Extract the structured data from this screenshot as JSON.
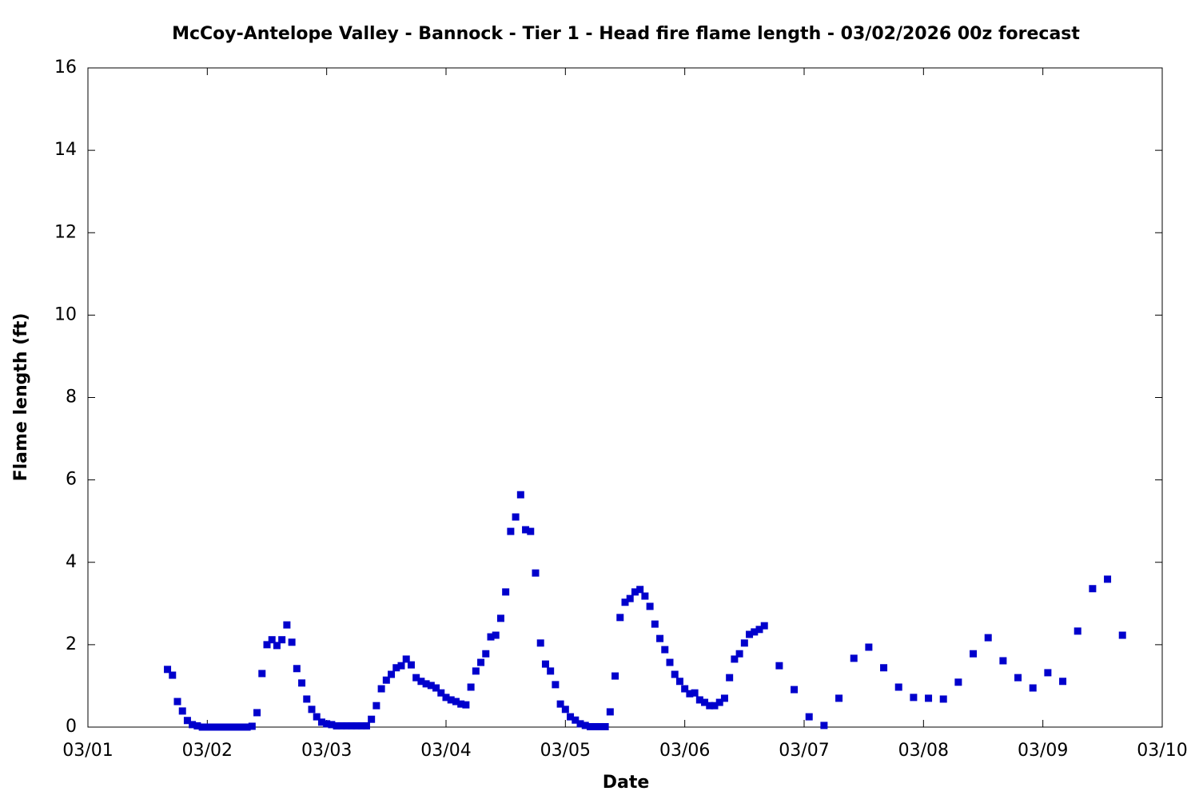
{
  "chart_data": {
    "type": "scatter",
    "title": "McCoy-Antelope Valley - Bannock - Tier 1 - Head fire flame length - 03/02/2026 00z forecast",
    "x_label": "Date",
    "y_label": "Flame length (ft)",
    "xlim": [
      0,
      216
    ],
    "ylim": [
      0,
      16
    ],
    "xticks": [
      {
        "value": 0,
        "label": "03/01"
      },
      {
        "value": 24,
        "label": "03/02"
      },
      {
        "value": 48,
        "label": "03/03"
      },
      {
        "value": 72,
        "label": "03/04"
      },
      {
        "value": 96,
        "label": "03/05"
      },
      {
        "value": 120,
        "label": "03/06"
      },
      {
        "value": 144,
        "label": "03/07"
      },
      {
        "value": 168,
        "label": "03/08"
      },
      {
        "value": 192,
        "label": "03/09"
      },
      {
        "value": 216,
        "label": "03/10"
      }
    ],
    "yticks": [
      0,
      2,
      4,
      6,
      8,
      10,
      12,
      14,
      16
    ],
    "grid": false,
    "color": "#0000cc",
    "x": [
      16,
      17,
      18,
      19,
      20,
      21,
      22,
      23,
      24,
      25,
      26,
      27,
      28,
      29,
      30,
      31,
      32,
      33,
      34,
      35,
      36,
      37,
      38,
      39,
      40,
      41,
      42,
      43,
      44,
      45,
      46,
      47,
      48,
      49,
      50,
      51,
      52,
      53,
      54,
      55,
      56,
      57,
      58,
      59,
      60,
      61,
      62,
      63,
      64,
      65,
      66,
      67,
      68,
      69,
      70,
      71,
      72,
      73,
      74,
      75,
      76,
      77,
      78,
      79,
      80,
      81,
      82,
      83,
      84,
      85,
      86,
      87,
      88,
      89,
      90,
      91,
      92,
      93,
      94,
      95,
      96,
      97,
      98,
      99,
      100,
      101,
      102,
      103,
      104,
      105,
      106,
      107,
      108,
      109,
      110,
      111,
      112,
      113,
      114,
      115,
      116,
      117,
      118,
      119,
      120,
      121,
      122,
      123,
      124,
      125,
      126,
      127,
      128,
      129,
      130,
      131,
      132,
      133,
      134,
      135,
      136,
      139,
      142,
      145,
      148,
      151,
      154,
      157,
      160,
      163,
      166,
      169,
      172,
      175,
      178,
      181,
      184,
      187,
      190,
      193,
      196,
      199,
      202,
      205,
      208
    ],
    "values": [
      1.4,
      1.26,
      0.62,
      0.39,
      0.16,
      0.06,
      0.03,
      0,
      0,
      0,
      0,
      0,
      0,
      0,
      0,
      0,
      0,
      0.02,
      0.35,
      1.3,
      2.0,
      2.12,
      1.98,
      2.12,
      2.48,
      2.06,
      1.42,
      1.07,
      0.68,
      0.43,
      0.25,
      0.12,
      0.08,
      0.06,
      0.03,
      0.03,
      0.03,
      0.03,
      0.03,
      0.03,
      0.03,
      0.19,
      0.52,
      0.93,
      1.14,
      1.28,
      1.44,
      1.49,
      1.65,
      1.51,
      1.2,
      1.11,
      1.05,
      1.01,
      0.95,
      0.83,
      0.72,
      0.66,
      0.62,
      0.56,
      0.54,
      0.97,
      1.36,
      1.57,
      1.78,
      2.19,
      2.23,
      2.64,
      3.28,
      4.75,
      5.1,
      5.64,
      4.79,
      4.75,
      3.74,
      2.04,
      1.53,
      1.36,
      1.03,
      0.56,
      0.43,
      0.25,
      0.17,
      0.08,
      0.04,
      0.01,
      0.01,
      0.01,
      0.01,
      0.37,
      1.24,
      2.66,
      3.03,
      3.12,
      3.28,
      3.34,
      3.18,
      2.93,
      2.5,
      2.15,
      1.88,
      1.57,
      1.28,
      1.11,
      0.93,
      0.81,
      0.83,
      0.66,
      0.6,
      0.52,
      0.52,
      0.6,
      0.7,
      1.2,
      1.65,
      1.78,
      2.04,
      2.25,
      2.31,
      2.37,
      2.46,
      1.49,
      0.91,
      0.25,
      0.04,
      0.7,
      1.67,
      1.94,
      1.44,
      0.97,
      0.72,
      0.7,
      0.68,
      1.09,
      1.78,
      2.17,
      1.61,
      1.2,
      0.95,
      1.32,
      1.11,
      2.33,
      3.36,
      3.59,
      2.23
    ]
  }
}
